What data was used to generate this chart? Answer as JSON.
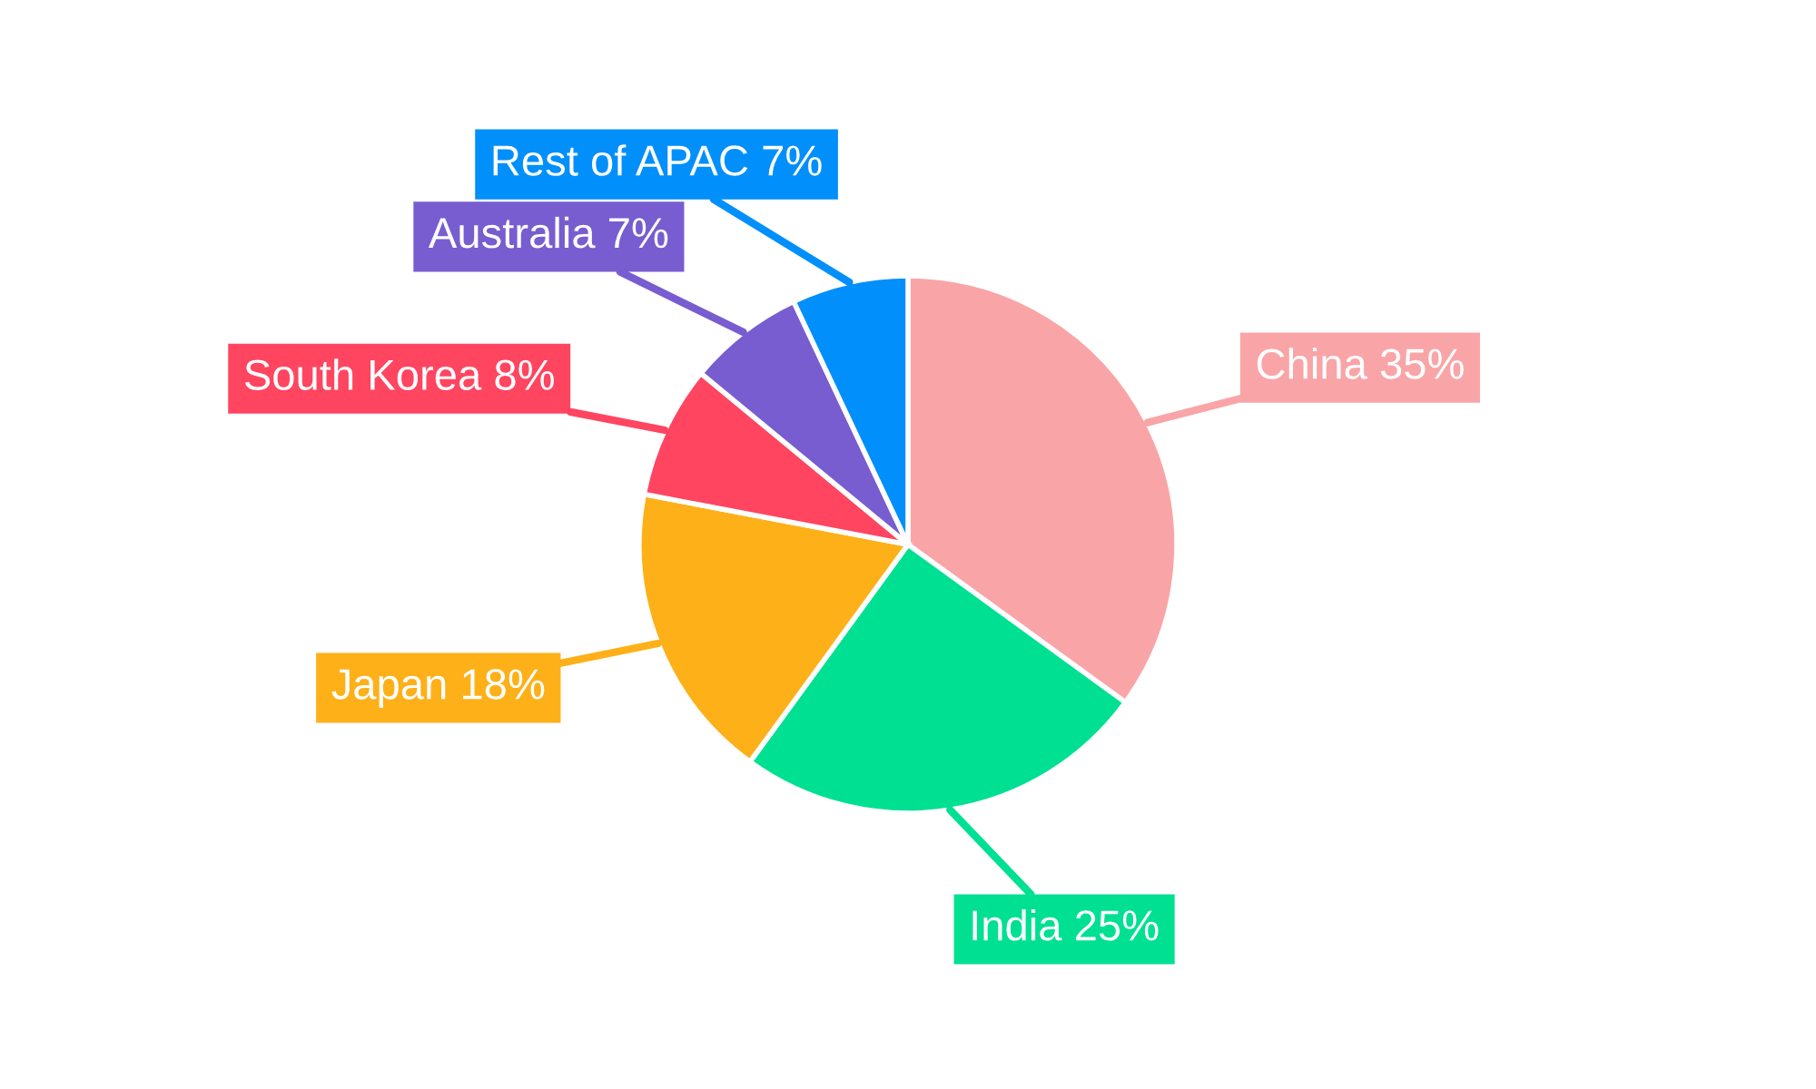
{
  "chart_data": {
    "type": "pie",
    "categories": [
      "China",
      "India",
      "Japan",
      "South Korea",
      "Australia",
      "Rest of APAC"
    ],
    "values": [
      35,
      25,
      18,
      8,
      7,
      7
    ],
    "value_labels": [
      "35%",
      "25%",
      "18%",
      "8%",
      "7%",
      "7%"
    ],
    "colors": [
      "#f9a5a7",
      "#00e093",
      "#feb019",
      "#ff4560",
      "#775dd0",
      "#008ffb"
    ],
    "legend": false
  }
}
